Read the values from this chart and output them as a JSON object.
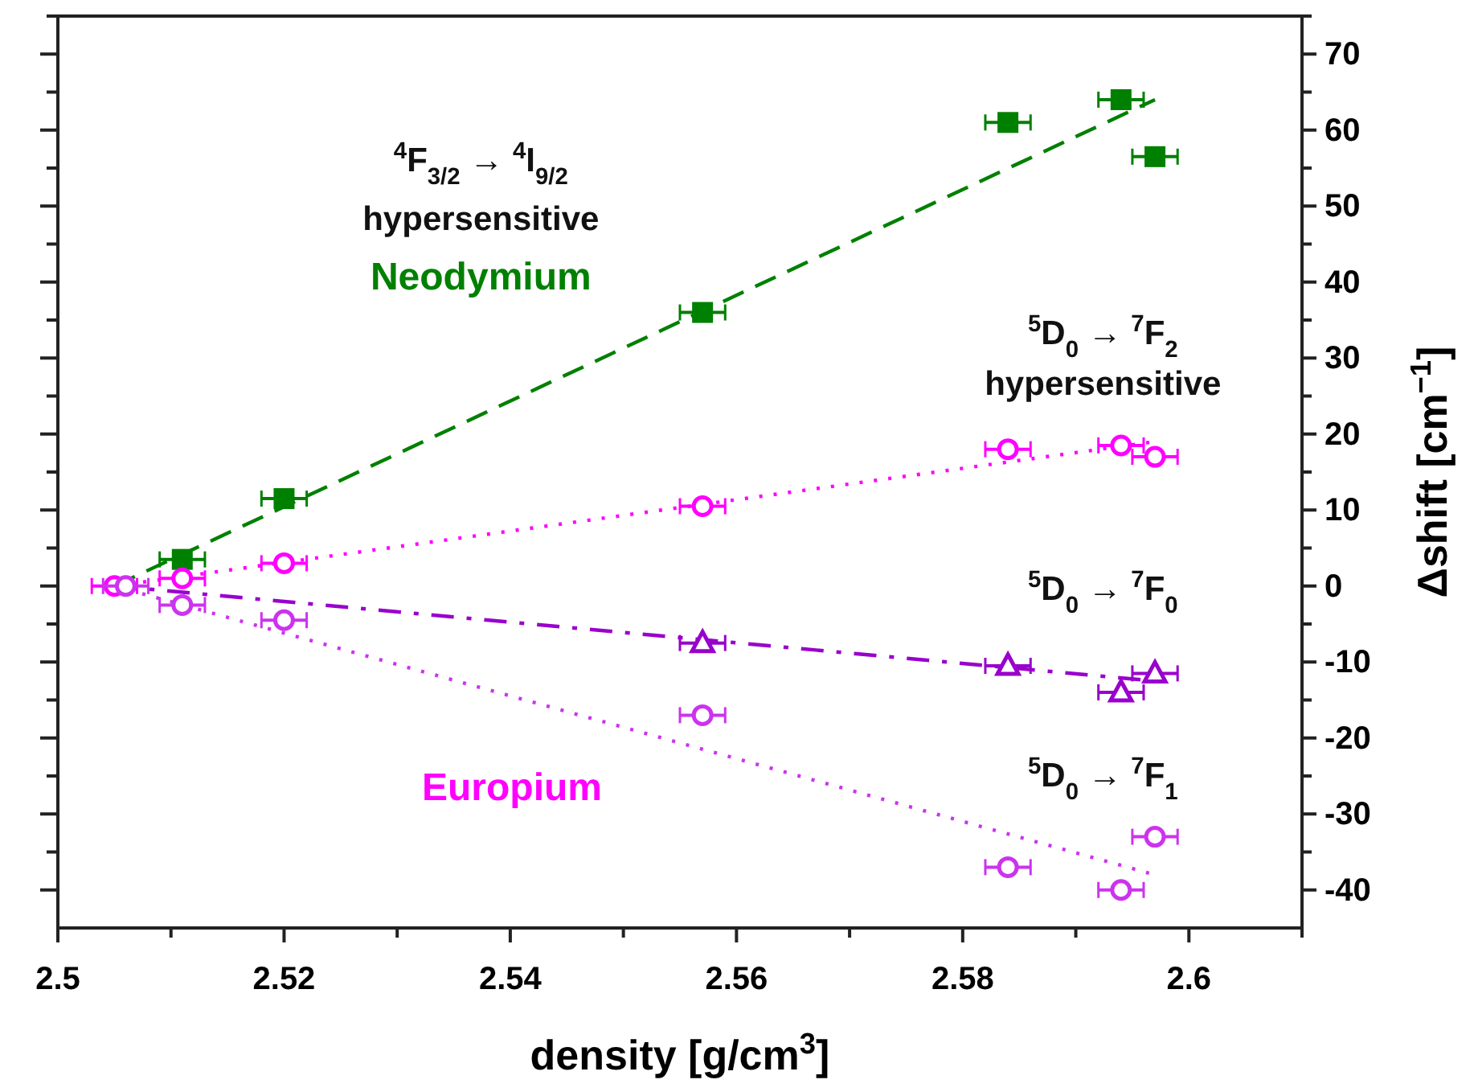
{
  "chart_data": {
    "type": "scatter",
    "xlabel": "density [g/cm$^{3}$]",
    "ylabel": "Δshift [cm$^{−1}$]",
    "xlim": [
      2.5,
      2.61
    ],
    "ylim": [
      -45,
      75
    ],
    "xticks": [
      {
        "value": 2.5,
        "label": "2.5"
      },
      {
        "value": 2.51,
        "label": null
      },
      {
        "value": 2.52,
        "label": "2.52"
      },
      {
        "value": 2.53,
        "label": null
      },
      {
        "value": 2.54,
        "label": "2.54"
      },
      {
        "value": 2.55,
        "label": null
      },
      {
        "value": 2.56,
        "label": "2.56"
      },
      {
        "value": 2.57,
        "label": null
      },
      {
        "value": 2.58,
        "label": "2.58"
      },
      {
        "value": 2.59,
        "label": null
      },
      {
        "value": 2.6,
        "label": "2.6"
      },
      {
        "value": 2.61,
        "label": null
      }
    ],
    "yticks": [
      -40,
      {
        "value": -35,
        "label": null
      },
      -30,
      {
        "value": -25,
        "label": null
      },
      -20,
      {
        "value": -15,
        "label": null
      },
      -10,
      {
        "value": -5,
        "label": null
      },
      0,
      {
        "value": 5,
        "label": null
      },
      10,
      {
        "value": 15,
        "label": null
      },
      20,
      {
        "value": 25,
        "label": null
      },
      30,
      {
        "value": 35,
        "label": null
      },
      40,
      {
        "value": 45,
        "label": null
      },
      50,
      {
        "value": 55,
        "label": null
      },
      60,
      {
        "value": 65,
        "label": null
      },
      70,
      {
        "value": 75,
        "label": null
      }
    ],
    "series": [
      {
        "color": "#008000",
        "marker": "square",
        "x": [
          2.511,
          2.52,
          2.557,
          2.584,
          2.594,
          2.597
        ],
        "values": [
          3.5,
          11.5,
          36,
          61,
          64,
          56.5
        ],
        "xerrors": [
          0.002,
          0.002,
          0.002,
          0.002,
          0.002,
          0.002
        ]
      },
      {
        "color": "#ff00ff",
        "marker": "circle",
        "x": [
          2.505,
          2.511,
          2.52,
          2.557,
          2.584,
          2.594,
          2.597
        ],
        "values": [
          0,
          1,
          3,
          10.5,
          18,
          18.5,
          17
        ],
        "xerrors": [
          0.002,
          0.002,
          0.002,
          0.002,
          0.002,
          0.002,
          0.002
        ]
      },
      {
        "color": "#9900cc",
        "marker": "triangle",
        "x": [
          2.557,
          2.584,
          2.594,
          2.597
        ],
        "values": [
          -7.5,
          -10.5,
          -14,
          -11.5
        ],
        "xerrors": [
          0.002,
          0.002,
          0.002,
          0.002
        ]
      },
      {
        "color": "#cc33ee",
        "marker": "circle",
        "x": [
          2.506,
          2.511,
          2.52,
          2.557,
          2.584,
          2.594,
          2.597
        ],
        "values": [
          0,
          -2.5,
          -4.5,
          -17,
          -37,
          -40,
          -33
        ],
        "xerrors": [
          0.002,
          0.002,
          0.002,
          0.002,
          0.002,
          0.002,
          0.002
        ]
      },
      {
        "type": "line",
        "color": "#008000",
        "marker": "none",
        "line_style": "dashed",
        "x": [
          2.505,
          2.597
        ],
        "values": [
          0,
          64
        ]
      },
      {
        "type": "line",
        "color": "#ff00ff",
        "marker": "none",
        "line_style": "dotted",
        "x": [
          2.505,
          2.597
        ],
        "values": [
          0,
          19
        ]
      },
      {
        "type": "line",
        "color": "#9900cc",
        "marker": "none",
        "line_style": "dashdot",
        "x": [
          2.505,
          2.597
        ],
        "values": [
          0,
          -12.5
        ]
      },
      {
        "type": "line",
        "color": "#cc33ee",
        "marker": "none",
        "line_style": "dotted",
        "x": [
          2.505,
          2.597
        ],
        "values": [
          0,
          -38
        ]
      }
    ],
    "annotations": [
      "$^{4}$F$_{3/2}$ → $^{4}$I$_{9/2}$",
      "hypersensitive",
      "Neodymium",
      "$^{5}$D$_{0}$ → $^{7}$F$_{2}$",
      "hypersensitive",
      "$^{5}$D$_{0}$ → $^{7}$F$_{0}$",
      "$^{5}$D$_{0}$ → $^{7}$F$_{1}$",
      "Europium"
    ]
  }
}
